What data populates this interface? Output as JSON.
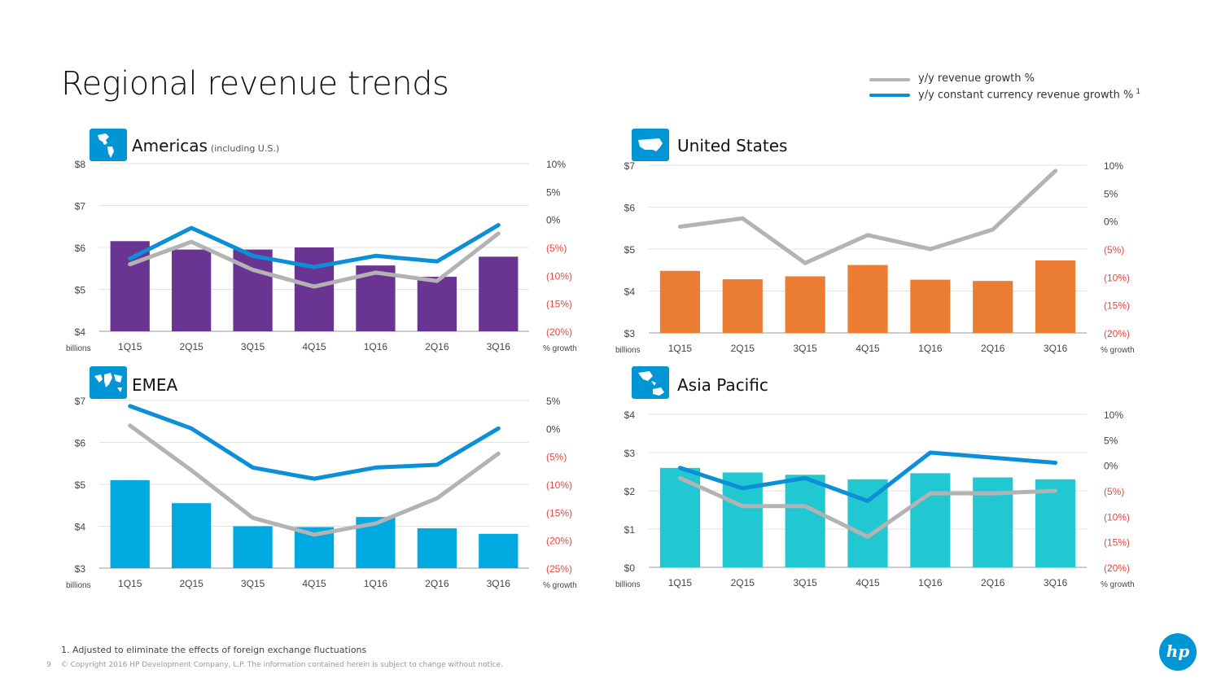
{
  "page": {
    "title": "Regional revenue trends",
    "legend": {
      "yy": "y/y revenue growth %",
      "cc": "y/y constant currency revenue growth %",
      "cc_note": "1",
      "yy_color": "#b3b3b3",
      "cc_color": "#0b8fd6"
    },
    "footnote": "1.  Adjusted to eliminate the effects of foreign exchange fluctuations",
    "page_number": "9",
    "copyright": "© Copyright 2016 HP Development Company, L.P. The information contained herein is subject to change without notice.",
    "logo_text": "hp"
  },
  "chart_data": [
    {
      "type": "bar",
      "panel_title": "Americas",
      "panel_subtitle": "(including U.S.)",
      "icon": "americas-map-icon",
      "bar_color": "#6a3592",
      "categories": [
        "1Q15",
        "2Q15",
        "3Q15",
        "4Q15",
        "1Q16",
        "2Q16",
        "3Q16"
      ],
      "values": [
        6.15,
        5.95,
        5.95,
        6.0,
        5.57,
        5.3,
        5.78
      ],
      "ylim": [
        4,
        8
      ],
      "yticks": [
        8,
        7,
        6,
        5,
        4
      ],
      "ytick_labels": [
        "$8",
        "$7",
        "$6",
        "$5",
        "$4"
      ],
      "ylabel": "billions",
      "y2lim": [
        -20,
        10
      ],
      "y2ticks": [
        10,
        5,
        0,
        -5,
        -10,
        -15,
        -20
      ],
      "y2tick_labels": [
        "10%",
        "5%",
        "0%",
        "(5%)",
        "(10%)",
        "(15%)",
        "(20%)"
      ],
      "y2label": "% growth",
      "series": [
        {
          "name": "y/y revenue growth %",
          "values": [
            -8,
            -4,
            -9,
            -12,
            -9.5,
            -11,
            -2.5
          ]
        },
        {
          "name": "y/y constant currency revenue growth %",
          "values": [
            -7,
            -1.5,
            -6.5,
            -8.5,
            -6.5,
            -7.5,
            -1
          ]
        }
      ]
    },
    {
      "type": "bar",
      "panel_title": "United States",
      "panel_subtitle": "",
      "icon": "usa-map-icon",
      "bar_color": "#ea7d33",
      "categories": [
        "1Q15",
        "2Q15",
        "3Q15",
        "4Q15",
        "1Q16",
        "2Q16",
        "3Q16"
      ],
      "values": [
        4.48,
        4.28,
        4.35,
        4.62,
        4.27,
        4.24,
        4.73
      ],
      "ylim": [
        3,
        7
      ],
      "yticks": [
        7,
        6,
        5,
        4,
        3
      ],
      "ytick_labels": [
        "$7",
        "$6",
        "$5",
        "$4",
        "$3"
      ],
      "ylabel": "billions",
      "y2lim": [
        -20,
        10
      ],
      "y2ticks": [
        10,
        5,
        0,
        -5,
        -10,
        -15,
        -20
      ],
      "y2tick_labels": [
        "10%",
        "5%",
        "0%",
        "(5%)",
        "(10%)",
        "(15%)",
        "(20%)"
      ],
      "y2label": "% growth",
      "series": [
        {
          "name": "y/y revenue growth %",
          "values": [
            -1,
            0.5,
            -7.5,
            -2.5,
            -5,
            -1.5,
            9
          ]
        }
      ]
    },
    {
      "type": "bar",
      "panel_title": "EMEA",
      "panel_subtitle": "",
      "icon": "world-map-icon",
      "bar_color": "#00a9e0",
      "categories": [
        "1Q15",
        "2Q15",
        "3Q15",
        "4Q15",
        "1Q16",
        "2Q16",
        "3Q16"
      ],
      "values": [
        5.1,
        4.55,
        4.0,
        3.98,
        4.22,
        3.95,
        3.82
      ],
      "ylim": [
        3,
        7
      ],
      "yticks": [
        7,
        6,
        5,
        4,
        3
      ],
      "ytick_labels": [
        "$7",
        "$6",
        "$5",
        "$4",
        "$3"
      ],
      "ylabel": "billions",
      "y2lim": [
        -25,
        5
      ],
      "y2ticks": [
        5,
        0,
        -5,
        -10,
        -15,
        -20,
        -25
      ],
      "y2tick_labels": [
        "5%",
        "0%",
        "(5%)",
        "(10%)",
        "(15%)",
        "(20%)",
        "(25%)"
      ],
      "y2label": "% growth",
      "series": [
        {
          "name": "y/y revenue growth %",
          "values": [
            0.5,
            -7.5,
            -16,
            -19,
            -17,
            -12.5,
            -4.5
          ]
        },
        {
          "name": "y/y constant currency revenue growth %",
          "values": [
            4,
            0,
            -7,
            -9,
            -7,
            -6.5,
            0
          ]
        }
      ]
    },
    {
      "type": "bar",
      "panel_title": "Asia Pacific",
      "panel_subtitle": "",
      "icon": "asia-pacific-map-icon",
      "bar_color": "#21c8d1",
      "categories": [
        "1Q15",
        "2Q15",
        "3Q15",
        "4Q15",
        "1Q16",
        "2Q16",
        "3Q16"
      ],
      "values": [
        2.6,
        2.48,
        2.42,
        2.3,
        2.46,
        2.35,
        2.3
      ],
      "ylim": [
        0,
        4
      ],
      "yticks": [
        4,
        3,
        2,
        1,
        0
      ],
      "ytick_labels": [
        "$4",
        "$3",
        "$2",
        "$1",
        "$0"
      ],
      "ylabel": "billions",
      "y2lim": [
        -20,
        10
      ],
      "y2ticks": [
        10,
        5,
        0,
        -5,
        -10,
        -15,
        -20
      ],
      "y2tick_labels": [
        "10%",
        "5%",
        "0%",
        "(5%)",
        "(10%)",
        "(15%)",
        "(20%)"
      ],
      "y2label": "% growth",
      "series": [
        {
          "name": "y/y revenue growth %",
          "values": [
            -2.5,
            -8,
            -8,
            -14,
            -5.5,
            -5.5,
            -5
          ]
        },
        {
          "name": "y/y constant currency revenue growth %",
          "values": [
            -0.5,
            -4.5,
            -2.5,
            -7,
            2.5,
            1.5,
            0.5
          ]
        }
      ]
    }
  ]
}
